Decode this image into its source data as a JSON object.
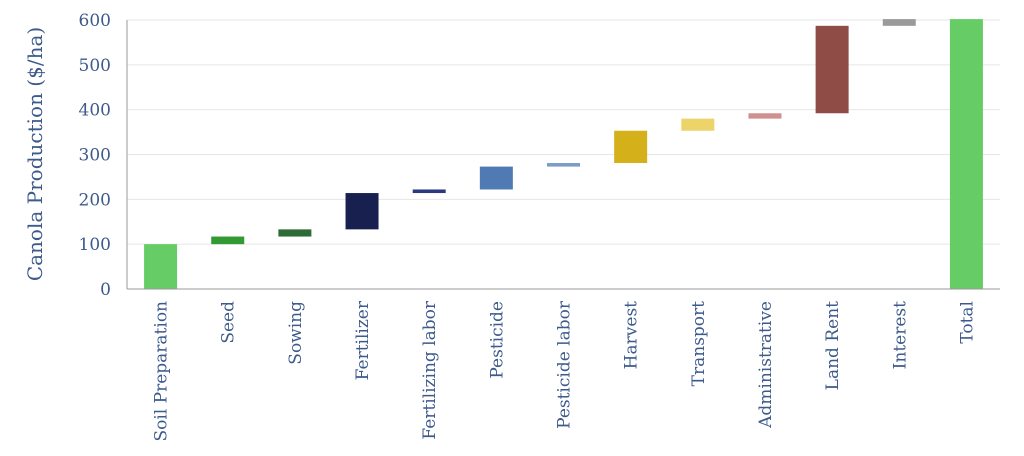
{
  "chart_data": {
    "type": "bar",
    "subtype": "waterfall",
    "title": "",
    "xlabel": "",
    "ylabel": "Canola Production ($/ha)",
    "ylim": [
      0,
      600
    ],
    "yticks": [
      0,
      100,
      200,
      300,
      400,
      500,
      600
    ],
    "grid": true,
    "legend": "none",
    "categories": [
      "Soil Preparation",
      "Seed",
      "Sowing",
      "Fertilizer",
      "Fertilizing labor",
      "Pesticide",
      "Pesticide labor",
      "Harvest",
      "Transport",
      "Administrative",
      "Land Rent",
      "Interest",
      "Total"
    ],
    "bars": [
      {
        "category": "Soil Preparation",
        "start": 0,
        "end": 100,
        "color": "#66cc66"
      },
      {
        "category": "Seed",
        "start": 100,
        "end": 117,
        "color": "#339933"
      },
      {
        "category": "Sowing",
        "start": 117,
        "end": 133,
        "color": "#2e6b36"
      },
      {
        "category": "Fertilizer",
        "start": 133,
        "end": 214,
        "color": "#17204f"
      },
      {
        "category": "Fertilizing labor",
        "start": 214,
        "end": 222,
        "color": "#2b3a80"
      },
      {
        "category": "Pesticide",
        "start": 222,
        "end": 273,
        "color": "#4f7ab3"
      },
      {
        "category": "Pesticide labor",
        "start": 273,
        "end": 281,
        "color": "#7c9cc8"
      },
      {
        "category": "Harvest",
        "start": 281,
        "end": 353,
        "color": "#d4b11a"
      },
      {
        "category": "Transport",
        "start": 353,
        "end": 380,
        "color": "#ecd46a"
      },
      {
        "category": "Administrative",
        "start": 380,
        "end": 392,
        "color": "#d09090"
      },
      {
        "category": "Land Rent",
        "start": 392,
        "end": 587,
        "color": "#8f4b45"
      },
      {
        "category": "Interest",
        "start": 587,
        "end": 602,
        "color": "#9a9a9a"
      },
      {
        "category": "Total",
        "start": 0,
        "end": 602,
        "color": "#66cc66"
      }
    ]
  }
}
